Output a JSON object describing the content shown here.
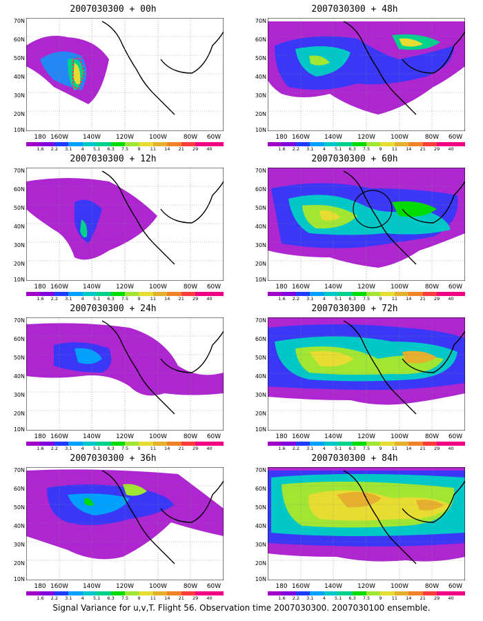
{
  "panels": [
    {
      "title": "2007030300 + 00h"
    },
    {
      "title": "2007030300 + 12h"
    },
    {
      "title": "2007030300 + 24h"
    },
    {
      "title": "2007030300 + 36h"
    },
    {
      "title": "2007030300 + 48h"
    },
    {
      "title": "2007030300 + 60h"
    },
    {
      "title": "2007030300 + 72h"
    },
    {
      "title": "2007030300 + 84h"
    }
  ],
  "lat_labels": [
    "70N",
    "60N",
    "50N",
    "40N",
    "30N",
    "20N",
    "10N"
  ],
  "lon_labels": [
    "180",
    "160W",
    "140W",
    "120W",
    "100W",
    "80W",
    "60W"
  ],
  "colorbar": {
    "labels": [
      "1.6",
      "2.2",
      "3.1",
      "4",
      "5.1",
      "6.3",
      "7.5",
      "9",
      "11",
      "14",
      "21",
      "29",
      "40"
    ],
    "colors": [
      "#a000c8",
      "#8200dc",
      "#1e3cff",
      "#00a0ff",
      "#00c8c8",
      "#00d28c",
      "#00dc00",
      "#a0e632",
      "#e6dc32",
      "#e6af2d",
      "#f08228",
      "#fa3c3c",
      "#f00082"
    ]
  },
  "caption": "Signal Variance for u,v,T. Flight 56. Observation time 2007030300. 2007030100 ensemble."
}
